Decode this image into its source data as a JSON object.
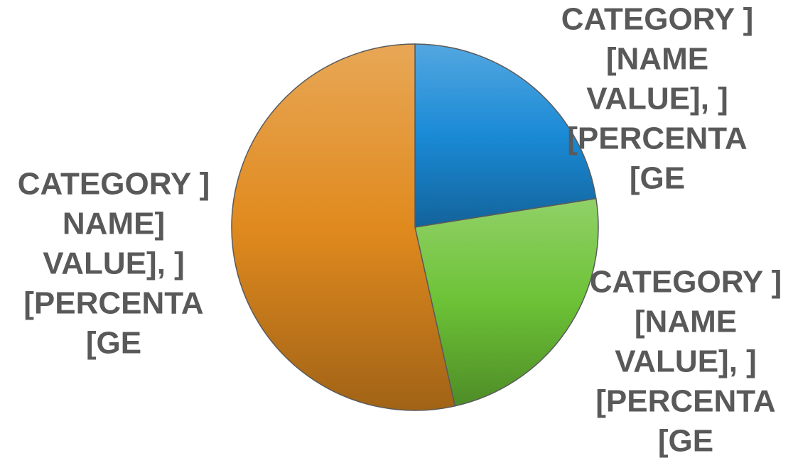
{
  "chart_data": {
    "type": "pie",
    "values": [
      22.5,
      24,
      53.5
    ],
    "colors": [
      "#1a8ad6",
      "#6cc236",
      "#e08a1e"
    ],
    "data_labels": [
      [
        "CATEGORY ]",
        "[NAME",
        "VALUE], ]",
        "[PERCENTA",
        "[GE"
      ],
      [
        "CATEGORY ]",
        "[NAME",
        "VALUE], ]",
        "[PERCENTA",
        "[GE"
      ],
      [
        "CATEGORY ]",
        "NAME]",
        "VALUE], ]",
        "[PERCENTA",
        "[GE"
      ]
    ]
  }
}
